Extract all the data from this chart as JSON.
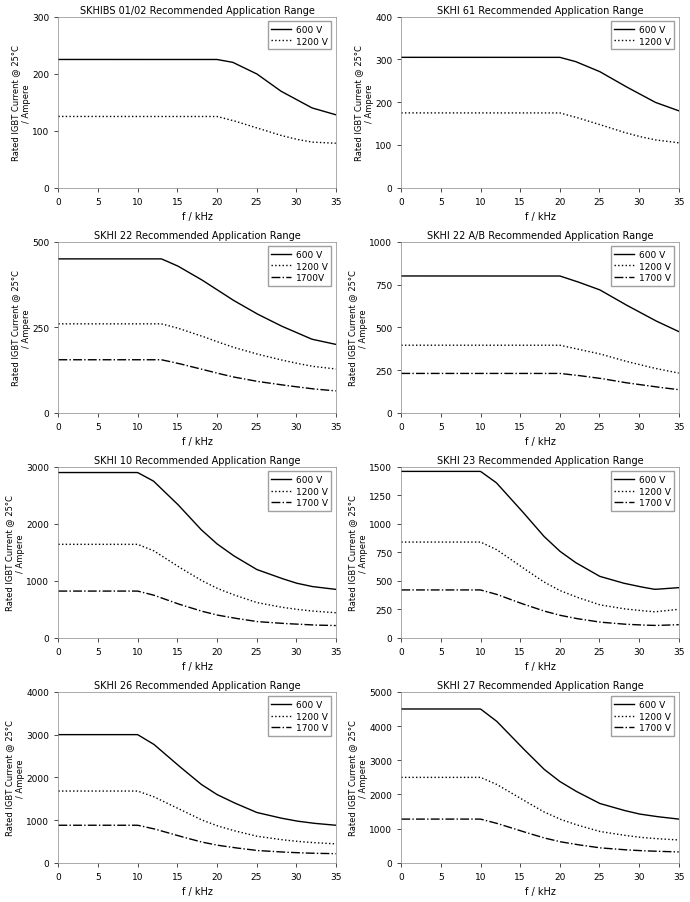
{
  "charts": [
    {
      "title": "SKHIBS 01/02 Recommended Application Range",
      "ylim": [
        0,
        300
      ],
      "yticks": [
        0,
        100,
        200,
        300
      ],
      "series": [
        {
          "label": "600 V",
          "style": "solid",
          "color": "black",
          "x": [
            0,
            20,
            22,
            25,
            28,
            30,
            32,
            35
          ],
          "y": [
            225,
            225,
            220,
            200,
            170,
            155,
            140,
            128
          ]
        },
        {
          "label": "1200 V",
          "style": "dotted",
          "color": "black",
          "x": [
            0,
            20,
            22,
            25,
            28,
            30,
            32,
            35
          ],
          "y": [
            125,
            125,
            118,
            105,
            92,
            85,
            80,
            78
          ]
        }
      ]
    },
    {
      "title": "SKHI 61 Recommended Application Range",
      "ylim": [
        0,
        400
      ],
      "yticks": [
        0,
        100,
        200,
        300,
        400
      ],
      "series": [
        {
          "label": "600 V",
          "style": "solid",
          "color": "black",
          "x": [
            0,
            20,
            22,
            25,
            28,
            30,
            32,
            35
          ],
          "y": [
            305,
            305,
            295,
            272,
            240,
            220,
            200,
            180
          ]
        },
        {
          "label": "1200 V",
          "style": "dotted",
          "color": "black",
          "x": [
            0,
            20,
            22,
            25,
            28,
            30,
            32,
            35
          ],
          "y": [
            175,
            175,
            165,
            148,
            130,
            120,
            112,
            105
          ]
        }
      ]
    },
    {
      "title": "SKHI 22 Recommended Application Range",
      "ylim": [
        0,
        500
      ],
      "yticks": [
        0,
        250,
        500
      ],
      "series": [
        {
          "label": "600 V",
          "style": "solid",
          "color": "black",
          "x": [
            0,
            13,
            15,
            18,
            20,
            22,
            25,
            28,
            30,
            32,
            35
          ],
          "y": [
            450,
            450,
            430,
            390,
            360,
            330,
            290,
            255,
            235,
            215,
            200
          ]
        },
        {
          "label": "1200 V",
          "style": "dotted",
          "color": "black",
          "x": [
            0,
            13,
            15,
            18,
            20,
            22,
            25,
            28,
            30,
            32,
            35
          ],
          "y": [
            260,
            260,
            248,
            225,
            208,
            192,
            172,
            155,
            145,
            136,
            128
          ]
        },
        {
          "label": "1700V",
          "style": "dashdot",
          "color": "black",
          "x": [
            0,
            13,
            15,
            18,
            20,
            22,
            25,
            28,
            30,
            32,
            35
          ],
          "y": [
            155,
            155,
            145,
            128,
            116,
            105,
            92,
            82,
            76,
            70,
            64
          ]
        }
      ]
    },
    {
      "title": "SKHI 22 A/B Recommended Application Range",
      "ylim": [
        0,
        1000
      ],
      "yticks": [
        0,
        250,
        500,
        750,
        1000
      ],
      "series": [
        {
          "label": "600 V",
          "style": "solid",
          "color": "black",
          "x": [
            0,
            20,
            22,
            25,
            28,
            30,
            32,
            35
          ],
          "y": [
            800,
            800,
            770,
            720,
            640,
            590,
            540,
            475
          ]
        },
        {
          "label": "1200 V",
          "style": "dotted",
          "color": "black",
          "x": [
            0,
            20,
            22,
            25,
            28,
            30,
            32,
            35
          ],
          "y": [
            395,
            395,
            375,
            345,
            305,
            282,
            260,
            232
          ]
        },
        {
          "label": "1700 V",
          "style": "dashdot",
          "color": "black",
          "x": [
            0,
            20,
            22,
            25,
            28,
            30,
            32,
            35
          ],
          "y": [
            230,
            230,
            220,
            202,
            178,
            165,
            152,
            135
          ]
        }
      ]
    },
    {
      "title": "SKHI 10 Recommended Application Range",
      "ylim": [
        0,
        3000
      ],
      "yticks": [
        0,
        1000,
        2000,
        3000
      ],
      "series": [
        {
          "label": "600 V",
          "style": "solid",
          "color": "black",
          "x": [
            0,
            10,
            12,
            15,
            18,
            20,
            22,
            25,
            28,
            30,
            32,
            35
          ],
          "y": [
            2900,
            2900,
            2750,
            2350,
            1900,
            1650,
            1450,
            1200,
            1050,
            960,
            900,
            850
          ]
        },
        {
          "label": "1200 V",
          "style": "dotted",
          "color": "black",
          "x": [
            0,
            10,
            12,
            15,
            18,
            20,
            22,
            25,
            28,
            30,
            32,
            35
          ],
          "y": [
            1640,
            1640,
            1530,
            1260,
            1010,
            870,
            760,
            620,
            540,
            500,
            470,
            440
          ]
        },
        {
          "label": "1700 V",
          "style": "dashdot",
          "color": "black",
          "x": [
            0,
            10,
            12,
            15,
            18,
            20,
            22,
            25,
            28,
            30,
            32,
            35
          ],
          "y": [
            820,
            820,
            750,
            600,
            470,
            400,
            350,
            285,
            255,
            240,
            225,
            215
          ]
        }
      ]
    },
    {
      "title": "SKHI 23 Recommended Application Range",
      "ylim": [
        0,
        1500
      ],
      "yticks": [
        0,
        250,
        500,
        750,
        1000,
        1250,
        1500
      ],
      "series": [
        {
          "label": "600 V",
          "style": "solid",
          "color": "black",
          "x": [
            0,
            10,
            12,
            15,
            18,
            20,
            22,
            25,
            28,
            30,
            32,
            35
          ],
          "y": [
            1460,
            1460,
            1360,
            1130,
            890,
            760,
            660,
            540,
            480,
            450,
            425,
            440
          ]
        },
        {
          "label": "1200 V",
          "style": "dotted",
          "color": "black",
          "x": [
            0,
            10,
            12,
            15,
            18,
            20,
            22,
            25,
            28,
            30,
            32,
            35
          ],
          "y": [
            840,
            840,
            775,
            630,
            490,
            415,
            360,
            290,
            255,
            240,
            228,
            250
          ]
        },
        {
          "label": "1700 V",
          "style": "dashdot",
          "color": "black",
          "x": [
            0,
            10,
            12,
            15,
            18,
            20,
            22,
            25,
            28,
            30,
            32,
            35
          ],
          "y": [
            420,
            420,
            382,
            305,
            235,
            198,
            170,
            138,
            120,
            113,
            108,
            115
          ]
        }
      ]
    },
    {
      "title": "SKHI 26 Recommended Application Range",
      "ylim": [
        0,
        4000
      ],
      "yticks": [
        0,
        1000,
        2000,
        3000,
        4000
      ],
      "series": [
        {
          "label": "600 V",
          "style": "solid",
          "color": "black",
          "x": [
            0,
            10,
            12,
            15,
            18,
            20,
            22,
            25,
            28,
            30,
            32,
            35
          ],
          "y": [
            3000,
            3000,
            2780,
            2300,
            1840,
            1600,
            1420,
            1180,
            1050,
            980,
            930,
            880
          ]
        },
        {
          "label": "1200 V",
          "style": "dotted",
          "color": "black",
          "x": [
            0,
            10,
            12,
            15,
            18,
            20,
            22,
            25,
            28,
            30,
            32,
            35
          ],
          "y": [
            1680,
            1680,
            1550,
            1280,
            1010,
            870,
            760,
            625,
            545,
            505,
            475,
            445
          ]
        },
        {
          "label": "1700 V",
          "style": "dashdot",
          "color": "black",
          "x": [
            0,
            10,
            12,
            15,
            18,
            20,
            22,
            25,
            28,
            30,
            32,
            35
          ],
          "y": [
            880,
            880,
            800,
            640,
            490,
            415,
            360,
            290,
            255,
            238,
            225,
            215
          ]
        }
      ]
    },
    {
      "title": "SKHI 27 Recommended Application Range",
      "ylim": [
        0,
        5000
      ],
      "yticks": [
        0,
        1000,
        2000,
        3000,
        4000,
        5000
      ],
      "series": [
        {
          "label": "600 V",
          "style": "solid",
          "color": "black",
          "x": [
            0,
            10,
            12,
            15,
            18,
            20,
            22,
            25,
            28,
            30,
            32,
            35
          ],
          "y": [
            4500,
            4500,
            4150,
            3430,
            2740,
            2380,
            2100,
            1740,
            1540,
            1430,
            1360,
            1280
          ]
        },
        {
          "label": "1200 V",
          "style": "dotted",
          "color": "black",
          "x": [
            0,
            10,
            12,
            15,
            18,
            20,
            22,
            25,
            28,
            30,
            32,
            35
          ],
          "y": [
            2500,
            2500,
            2300,
            1890,
            1490,
            1280,
            1120,
            920,
            810,
            750,
            710,
            670
          ]
        },
        {
          "label": "1700 V",
          "style": "dashdot",
          "color": "black",
          "x": [
            0,
            10,
            12,
            15,
            18,
            20,
            22,
            25,
            28,
            30,
            32,
            35
          ],
          "y": [
            1280,
            1280,
            1160,
            940,
            730,
            620,
            540,
            440,
            385,
            358,
            340,
            320
          ]
        }
      ]
    }
  ],
  "xlabel": "f / kHz",
  "ylabel": "Rated IGBT Current @ 25°C\n/ Ampere",
  "xlim": [
    0,
    35
  ],
  "xticks": [
    0,
    5,
    10,
    15,
    20,
    25,
    30,
    35
  ],
  "background_color": "#ffffff",
  "plot_bg": "#ffffff"
}
